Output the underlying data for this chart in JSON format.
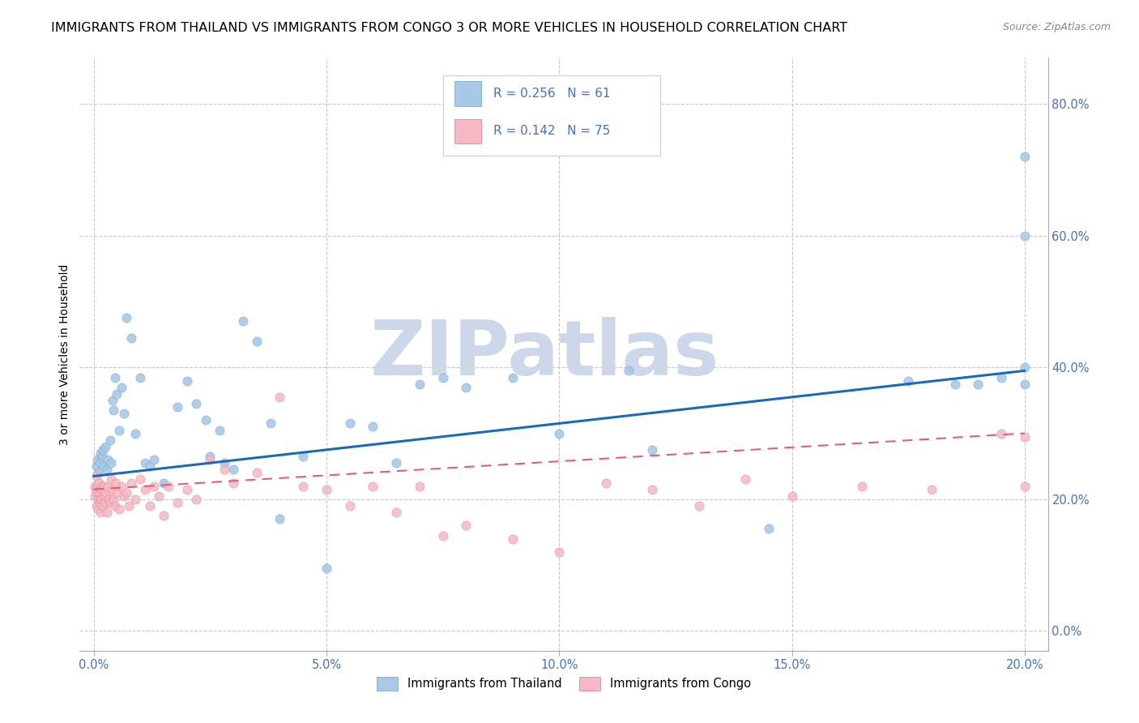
{
  "title": "IMMIGRANTS FROM THAILAND VS IMMIGRANTS FROM CONGO 3 OR MORE VEHICLES IN HOUSEHOLD CORRELATION CHART",
  "source": "Source: ZipAtlas.com",
  "xlabel_vals": [
    0.0,
    5.0,
    10.0,
    15.0,
    20.0
  ],
  "ylabel_vals": [
    0.0,
    20.0,
    40.0,
    60.0,
    80.0
  ],
  "xlim": [
    -0.3,
    20.5
  ],
  "ylim": [
    -3.0,
    87.0
  ],
  "color_thailand": "#a8c8e8",
  "color_congo": "#f5b8c4",
  "color_thailand_line": "#1a6bb5",
  "color_congo_line": "#e06070",
  "watermark": "ZIPatlas",
  "ylabel": "3 or more Vehicles in Household",
  "legend_label_thailand": "Immigrants from Thailand",
  "legend_label_congo": "Immigrants from Congo",
  "thailand_x": [
    0.05,
    0.08,
    0.1,
    0.12,
    0.15,
    0.18,
    0.2,
    0.22,
    0.25,
    0.28,
    0.3,
    0.35,
    0.38,
    0.4,
    0.42,
    0.45,
    0.5,
    0.55,
    0.6,
    0.65,
    0.7,
    0.8,
    0.9,
    1.0,
    1.1,
    1.2,
    1.3,
    1.5,
    1.8,
    2.0,
    2.2,
    2.4,
    2.5,
    2.7,
    2.8,
    3.0,
    3.2,
    3.5,
    3.8,
    4.0,
    4.5,
    5.0,
    5.5,
    6.0,
    6.5,
    7.0,
    7.5,
    8.0,
    9.0,
    10.0,
    11.5,
    12.0,
    14.5,
    17.5,
    18.5,
    19.0,
    19.5,
    20.0,
    20.0,
    20.0,
    20.0
  ],
  "thailand_y": [
    25.0,
    26.0,
    24.0,
    25.5,
    27.0,
    26.5,
    27.5,
    25.0,
    28.0,
    24.5,
    26.0,
    29.0,
    25.5,
    35.0,
    33.5,
    38.5,
    36.0,
    30.5,
    37.0,
    33.0,
    47.5,
    44.5,
    30.0,
    38.5,
    25.5,
    25.0,
    26.0,
    22.5,
    34.0,
    38.0,
    34.5,
    32.0,
    26.5,
    30.5,
    25.5,
    24.5,
    47.0,
    44.0,
    31.5,
    17.0,
    26.5,
    9.5,
    31.5,
    31.0,
    25.5,
    37.5,
    38.5,
    37.0,
    38.5,
    30.0,
    39.5,
    27.5,
    15.5,
    38.0,
    37.5,
    37.5,
    38.5,
    72.0,
    40.0,
    60.0,
    37.5
  ],
  "congo_x": [
    0.02,
    0.03,
    0.04,
    0.05,
    0.06,
    0.07,
    0.08,
    0.09,
    0.1,
    0.11,
    0.12,
    0.13,
    0.14,
    0.15,
    0.16,
    0.17,
    0.18,
    0.19,
    0.2,
    0.22,
    0.23,
    0.25,
    0.27,
    0.28,
    0.3,
    0.32,
    0.35,
    0.37,
    0.4,
    0.42,
    0.45,
    0.48,
    0.5,
    0.55,
    0.6,
    0.65,
    0.7,
    0.75,
    0.8,
    0.9,
    1.0,
    1.1,
    1.2,
    1.3,
    1.4,
    1.5,
    1.6,
    1.8,
    2.0,
    2.2,
    2.5,
    2.8,
    3.0,
    3.5,
    4.0,
    4.5,
    5.0,
    5.5,
    6.0,
    6.5,
    7.0,
    7.5,
    8.0,
    9.0,
    10.0,
    11.0,
    12.0,
    13.0,
    14.0,
    15.0,
    16.5,
    18.0,
    19.5,
    20.0,
    20.0
  ],
  "congo_y": [
    22.0,
    20.5,
    21.5,
    19.0,
    23.5,
    22.0,
    21.0,
    20.0,
    18.5,
    22.5,
    19.5,
    21.0,
    20.0,
    18.0,
    22.0,
    21.5,
    20.0,
    19.0,
    21.5,
    22.0,
    20.5,
    19.5,
    21.0,
    18.0,
    22.0,
    20.0,
    19.5,
    23.0,
    21.5,
    20.0,
    19.0,
    22.5,
    21.0,
    18.5,
    22.0,
    20.5,
    21.0,
    19.0,
    22.5,
    20.0,
    23.0,
    21.5,
    19.0,
    22.0,
    20.5,
    17.5,
    22.0,
    19.5,
    21.5,
    20.0,
    26.0,
    24.5,
    22.5,
    24.0,
    35.5,
    22.0,
    21.5,
    19.0,
    22.0,
    18.0,
    22.0,
    14.5,
    16.0,
    14.0,
    12.0,
    22.5,
    21.5,
    19.0,
    23.0,
    20.5,
    22.0,
    21.5,
    30.0,
    22.0,
    29.5
  ],
  "th_line_x": [
    0.0,
    20.0
  ],
  "th_line_y": [
    23.5,
    39.5
  ],
  "cg_line_x": [
    0.0,
    20.0
  ],
  "cg_line_y": [
    21.5,
    30.0
  ],
  "background_color": "#ffffff",
  "grid_color": "#c8c8c8",
  "title_fontsize": 11.5,
  "axis_label_fontsize": 10,
  "tick_fontsize": 10.5,
  "watermark_color": "#ccd8ea",
  "watermark_fontsize": 68,
  "tick_color": "#4472c4"
}
